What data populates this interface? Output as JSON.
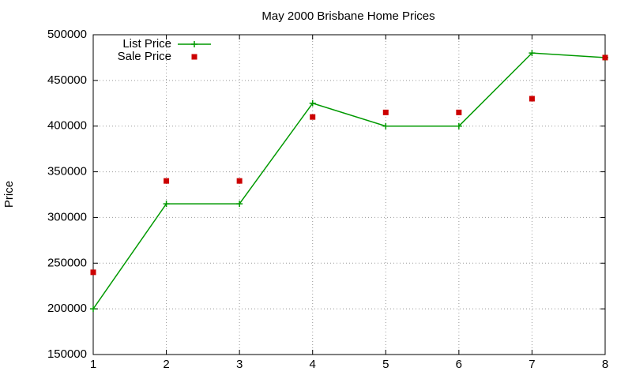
{
  "chart_data": {
    "type": "line",
    "title": "May 2000 Brisbane Home Prices",
    "y_label": "Price",
    "x": [
      1,
      2,
      3,
      4,
      5,
      6,
      7,
      8
    ],
    "series": [
      {
        "name": "List Price",
        "color": "#009900",
        "mode": "linespoints",
        "values": [
          200000,
          315000,
          315000,
          425000,
          400000,
          400000,
          480000,
          475000
        ]
      },
      {
        "name": "Sale Price",
        "color": "#cc0000",
        "mode": "points",
        "values": [
          240000,
          340000,
          340000,
          410000,
          415000,
          415000,
          430000,
          475000
        ]
      }
    ],
    "xlim": [
      1,
      8
    ],
    "xticks": [
      1,
      2,
      3,
      4,
      5,
      6,
      7,
      8
    ],
    "ylim": [
      150000,
      500000
    ],
    "yticks": [
      150000,
      200000,
      250000,
      300000,
      350000,
      400000,
      450000,
      500000
    ],
    "grid": true,
    "legend": "top-left"
  }
}
